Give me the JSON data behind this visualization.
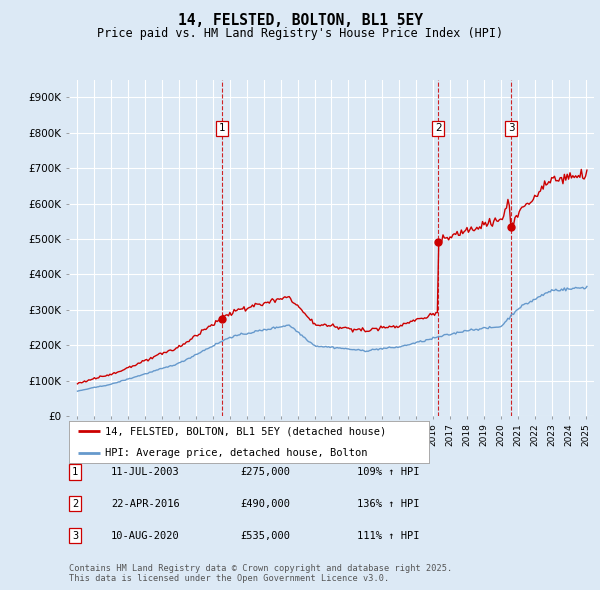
{
  "title": "14, FELSTED, BOLTON, BL1 5EY",
  "subtitle": "Price paid vs. HM Land Registry's House Price Index (HPI)",
  "legend_line1": "14, FELSTED, BOLTON, BL1 5EY (detached house)",
  "legend_line2": "HPI: Average price, detached house, Bolton",
  "footnote": "Contains HM Land Registry data © Crown copyright and database right 2025.\nThis data is licensed under the Open Government Licence v3.0.",
  "transactions": [
    {
      "num": 1,
      "date": "11-JUL-2003",
      "price": 275000,
      "year": 2003.53,
      "hpi_pct": "109% ↑ HPI"
    },
    {
      "num": 2,
      "date": "22-APR-2016",
      "price": 490000,
      "year": 2016.31,
      "hpi_pct": "136% ↑ HPI"
    },
    {
      "num": 3,
      "date": "10-AUG-2020",
      "price": 535000,
      "year": 2020.61,
      "hpi_pct": "111% ↑ HPI"
    }
  ],
  "background_color": "#dce9f5",
  "plot_bg_color": "#dce9f5",
  "red_line_color": "#cc0000",
  "blue_line_color": "#6699cc",
  "grid_color": "#ffffff",
  "ylim": [
    0,
    950000
  ],
  "yticks": [
    0,
    100000,
    200000,
    300000,
    400000,
    500000,
    600000,
    700000,
    800000,
    900000
  ],
  "ytick_labels": [
    "£0",
    "£100K",
    "£200K",
    "£300K",
    "£400K",
    "£500K",
    "£600K",
    "£700K",
    "£800K",
    "£900K"
  ],
  "xlim_start": 1994.5,
  "xlim_end": 2025.5
}
